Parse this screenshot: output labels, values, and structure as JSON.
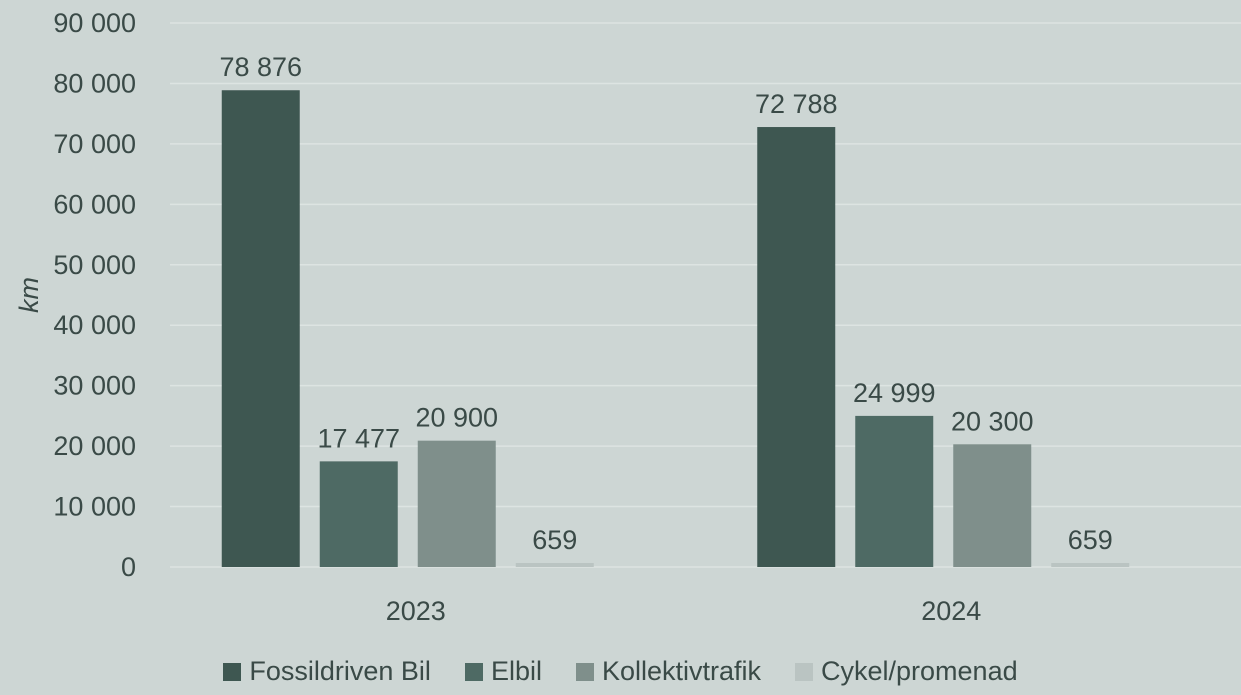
{
  "chart_data": {
    "type": "bar",
    "categories": [
      "2023",
      "2024"
    ],
    "series": [
      {
        "name": "Fossildriven Bil",
        "values": [
          78876,
          72788
        ],
        "labels": [
          "78 876",
          "72 788"
        ],
        "color": "#3e5751"
      },
      {
        "name": "Elbil",
        "values": [
          17477,
          24999
        ],
        "labels": [
          "17 477",
          "24 999"
        ],
        "color": "#4e6a64"
      },
      {
        "name": "Kollektivtrafik",
        "values": [
          20900,
          20300
        ],
        "labels": [
          "20 900",
          "20 300"
        ],
        "color": "#7f8f8b"
      },
      {
        "name": "Cykel/promenad",
        "values": [
          659,
          659
        ],
        "labels": [
          "659",
          "659"
        ],
        "color": "#bac4c2"
      }
    ],
    "ylabel": "km",
    "xlabel": "",
    "title": "",
    "ylim": [
      0,
      90000
    ],
    "yticks": [
      0,
      10000,
      20000,
      30000,
      40000,
      50000,
      60000,
      70000,
      80000,
      90000
    ],
    "ytick_labels": [
      "0",
      "10 000",
      "20 000",
      "30 000",
      "40 000",
      "50 000",
      "60 000",
      "70 000",
      "80 000",
      "90 000"
    ],
    "grid": true,
    "legend_position": "bottom",
    "colors": {
      "background": "#cdd6d4",
      "grid": "#dde4e2",
      "text": "#3a4a47"
    }
  }
}
